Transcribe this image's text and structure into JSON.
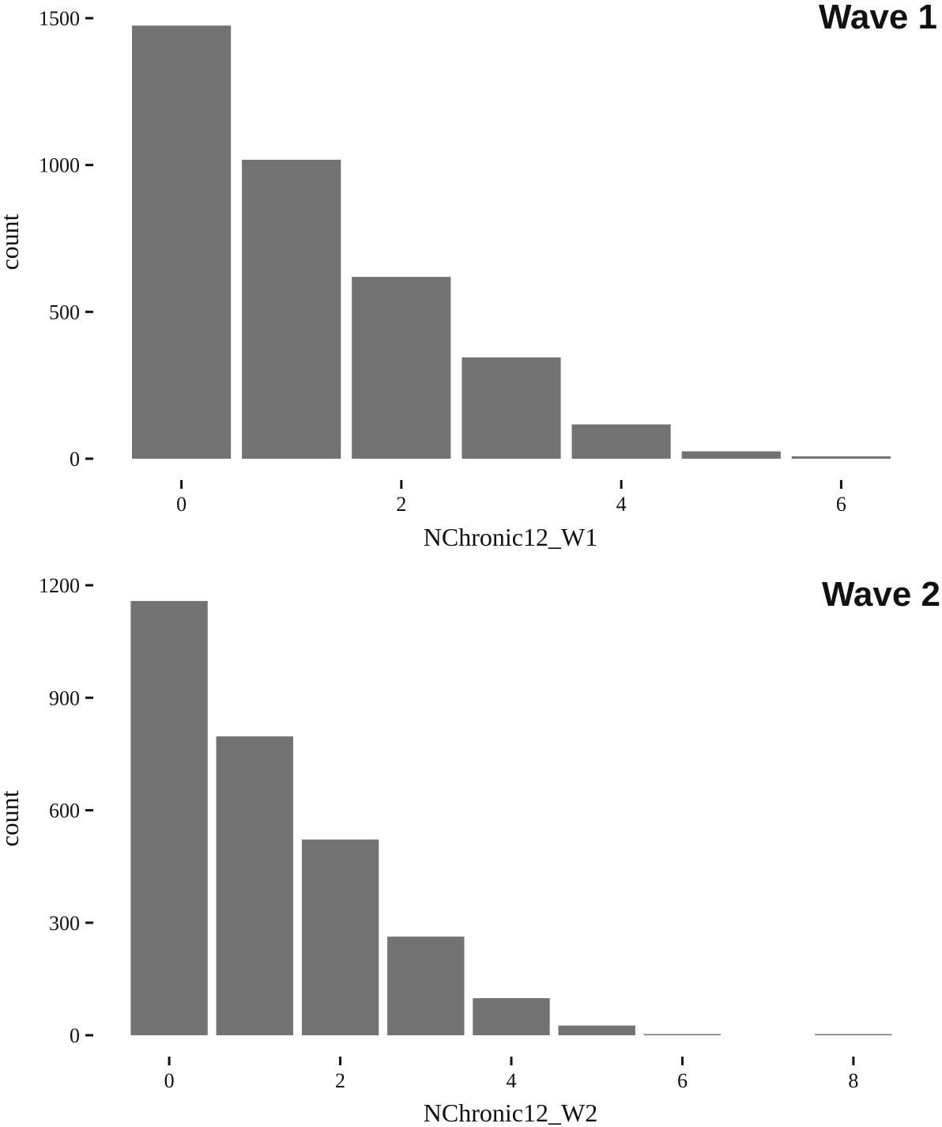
{
  "chart_data": [
    {
      "type": "bar",
      "title": "Wave 1",
      "xlabel": "NChronic12_W1",
      "ylabel": "count",
      "x": [
        0,
        1,
        2,
        3,
        4,
        5,
        6
      ],
      "values": [
        1475,
        1018,
        619,
        345,
        117,
        25,
        8
      ],
      "xlim": [
        -0.5,
        6.5
      ],
      "ylim": [
        0,
        1500
      ],
      "xticks": [
        0,
        2,
        4,
        6
      ],
      "yticks": [
        0,
        500,
        1000,
        1500
      ],
      "bar_color": "#737373",
      "grid": false
    },
    {
      "type": "bar",
      "title": "Wave 2",
      "xlabel": "NChronic12_W2",
      "ylabel": "count",
      "x": [
        0,
        1,
        2,
        3,
        4,
        5,
        6,
        7,
        8
      ],
      "values": [
        1158,
        797,
        522,
        263,
        99,
        26,
        3,
        0,
        1
      ],
      "xlim": [
        -0.5,
        8.5
      ],
      "ylim": [
        0,
        1200
      ],
      "xticks": [
        0,
        2,
        4,
        6,
        8
      ],
      "yticks": [
        0,
        300,
        600,
        900,
        1200
      ],
      "bar_color": "#737373",
      "grid": false
    }
  ]
}
